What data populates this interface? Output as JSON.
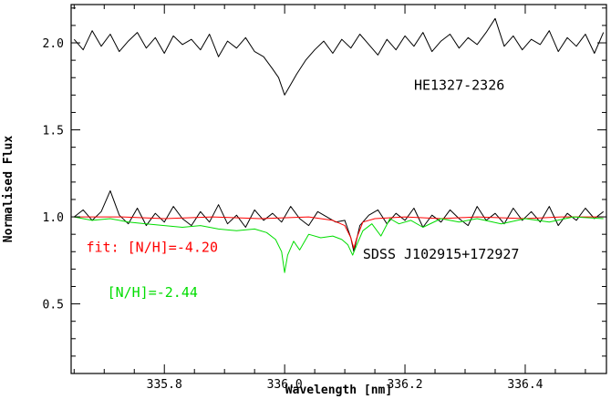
{
  "chart_data": {
    "type": "line",
    "xlabel": "Wavelength [nm]",
    "ylabel": "Normalised Flux",
    "xlim": [
      335.645,
      336.535
    ],
    "ylim": [
      0.1,
      2.22
    ],
    "x_ticks": [
      {
        "value": 335.8,
        "label": "335.8"
      },
      {
        "value": 336.0,
        "label": "336.0"
      },
      {
        "value": 336.2,
        "label": "336.2"
      },
      {
        "value": 336.4,
        "label": "336.4"
      }
    ],
    "y_ticks": [
      {
        "value": 0.5,
        "label": "0.5"
      },
      {
        "value": 1.0,
        "label": "1.0"
      },
      {
        "value": 1.5,
        "label": "1.5"
      },
      {
        "value": 2.0,
        "label": "2.0"
      }
    ],
    "x_minor_step": 0.05,
    "y_minor_step": 0.1,
    "grid": false,
    "legend": "none",
    "annotations": [
      {
        "text": "HE1327-2326",
        "color": "#000000",
        "x": 336.215,
        "y": 1.73
      },
      {
        "text": "SDSS J102915+172927",
        "color": "#000000",
        "x": 336.13,
        "y": 0.76
      },
      {
        "text": "fit: [N/H]=-4.20",
        "color": "#ff0000",
        "x": 335.67,
        "y": 0.8
      },
      {
        "text": "[N/H]=-2.44",
        "color": "#00dd00",
        "x": 335.705,
        "y": 0.54
      }
    ],
    "series": [
      {
        "color": "#000000",
        "x": [
          335.65,
          335.665,
          335.68,
          335.695,
          335.71,
          335.725,
          335.74,
          335.755,
          335.77,
          335.785,
          335.8,
          335.815,
          335.83,
          335.845,
          335.86,
          335.875,
          335.89,
          335.905,
          335.92,
          335.935,
          335.95,
          335.965,
          335.98,
          335.99,
          336.0,
          336.01,
          336.02,
          336.035,
          336.05,
          336.065,
          336.08,
          336.095,
          336.11,
          336.125,
          336.14,
          336.155,
          336.17,
          336.185,
          336.2,
          336.215,
          336.23,
          336.245,
          336.26,
          336.275,
          336.29,
          336.305,
          336.32,
          336.335,
          336.35,
          336.365,
          336.38,
          336.395,
          336.41,
          336.425,
          336.44,
          336.455,
          336.47,
          336.485,
          336.5,
          336.515,
          336.53
        ],
        "values": [
          2.02,
          1.96,
          2.07,
          1.98,
          2.05,
          1.95,
          2.01,
          2.06,
          1.97,
          2.03,
          1.94,
          2.04,
          1.99,
          2.02,
          1.96,
          2.05,
          1.92,
          2.01,
          1.97,
          2.03,
          1.95,
          1.92,
          1.85,
          1.8,
          1.7,
          1.76,
          1.82,
          1.9,
          1.96,
          2.01,
          1.94,
          2.02,
          1.97,
          2.05,
          1.99,
          1.93,
          2.02,
          1.96,
          2.04,
          1.98,
          2.06,
          1.95,
          2.01,
          2.05,
          1.97,
          2.03,
          1.99,
          2.06,
          2.14,
          1.98,
          2.04,
          1.96,
          2.02,
          1.99,
          2.07,
          1.95,
          2.03,
          1.98,
          2.05,
          1.94,
          2.06
        ]
      },
      {
        "color": "#000000",
        "x": [
          335.65,
          335.665,
          335.68,
          335.695,
          335.71,
          335.725,
          335.74,
          335.755,
          335.77,
          335.785,
          335.8,
          335.815,
          335.83,
          335.845,
          335.86,
          335.875,
          335.89,
          335.905,
          335.92,
          335.935,
          335.95,
          335.965,
          335.98,
          335.995,
          336.01,
          336.025,
          336.04,
          336.055,
          336.07,
          336.085,
          336.1,
          336.11,
          336.115,
          336.125,
          336.14,
          336.155,
          336.17,
          336.185,
          336.2,
          336.215,
          336.23,
          336.245,
          336.26,
          336.275,
          336.29,
          336.305,
          336.32,
          336.335,
          336.35,
          336.365,
          336.38,
          336.395,
          336.41,
          336.425,
          336.44,
          336.455,
          336.47,
          336.485,
          336.5,
          336.515,
          336.53
        ],
        "values": [
          1.0,
          1.04,
          0.98,
          1.03,
          1.15,
          1.01,
          0.96,
          1.05,
          0.95,
          1.02,
          0.97,
          1.06,
          0.99,
          0.95,
          1.03,
          0.97,
          1.07,
          0.96,
          1.01,
          0.94,
          1.04,
          0.98,
          1.02,
          0.97,
          1.06,
          0.99,
          0.95,
          1.03,
          1.0,
          0.97,
          0.98,
          0.88,
          0.8,
          0.95,
          1.01,
          1.04,
          0.96,
          1.02,
          0.98,
          1.05,
          0.94,
          1.01,
          0.97,
          1.04,
          0.99,
          0.95,
          1.06,
          0.98,
          1.02,
          0.96,
          1.05,
          0.98,
          1.03,
          0.97,
          1.06,
          0.95,
          1.02,
          0.98,
          1.05,
          0.99,
          1.03
        ]
      },
      {
        "color": "#ff0000",
        "x": [
          335.65,
          335.73,
          335.8,
          335.88,
          335.96,
          336.04,
          336.08,
          336.1,
          336.11,
          336.115,
          336.12,
          336.13,
          336.15,
          336.2,
          336.26,
          336.32,
          336.4,
          336.46,
          336.53
        ],
        "values": [
          1.0,
          1.0,
          0.99,
          1.0,
          0.99,
          1.0,
          0.98,
          0.95,
          0.88,
          0.82,
          0.88,
          0.97,
          0.99,
          1.0,
          0.99,
          1.0,
          0.99,
          1.0,
          1.0
        ]
      },
      {
        "color": "#00dd00",
        "x": [
          335.65,
          335.68,
          335.71,
          335.74,
          335.77,
          335.8,
          335.83,
          335.86,
          335.89,
          335.92,
          335.95,
          335.97,
          335.985,
          335.995,
          336.0,
          336.005,
          336.015,
          336.025,
          336.04,
          336.06,
          336.08,
          336.095,
          336.105,
          336.113,
          336.12,
          336.13,
          336.145,
          336.16,
          336.175,
          336.19,
          336.21,
          336.23,
          336.26,
          336.29,
          336.32,
          336.36,
          336.4,
          336.44,
          336.48,
          336.53
        ],
        "values": [
          1.0,
          0.98,
          0.99,
          0.97,
          0.96,
          0.95,
          0.94,
          0.95,
          0.93,
          0.92,
          0.93,
          0.91,
          0.87,
          0.8,
          0.68,
          0.78,
          0.86,
          0.81,
          0.9,
          0.88,
          0.89,
          0.87,
          0.84,
          0.78,
          0.84,
          0.92,
          0.96,
          0.89,
          0.99,
          0.96,
          0.98,
          0.94,
          0.99,
          0.97,
          0.99,
          0.96,
          0.99,
          0.97,
          1.0,
          0.99
        ]
      }
    ]
  }
}
